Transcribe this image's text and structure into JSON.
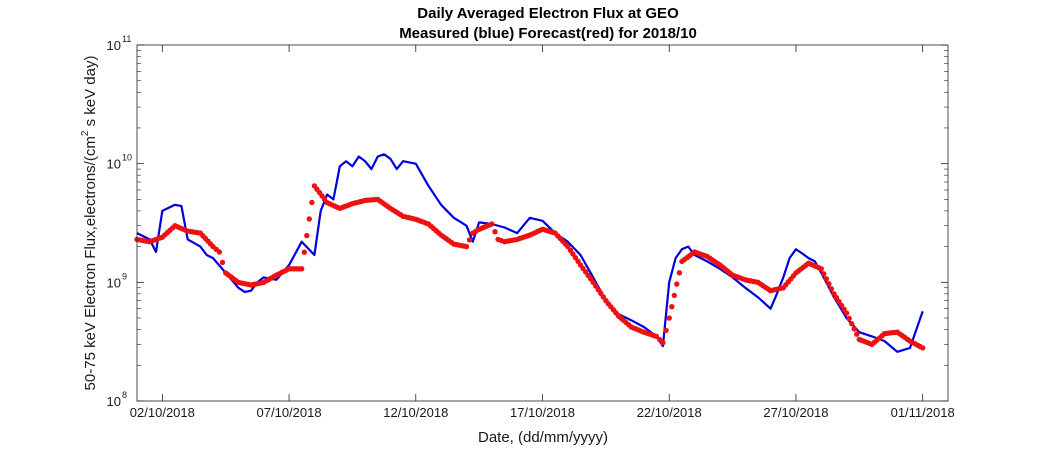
{
  "chart_data": {
    "type": "line",
    "title": "Daily Averaged Electron Flux at GEO",
    "subtitle": "Measured (blue) Forecast(red) for 2018/10",
    "xlabel": "Date, (dd/mm/yyyy)",
    "ylabel": "50-75 keV Electron Flux,electrons/(cm2 s keV day)",
    "ylabel_parts": {
      "before": "50-75 keV Electron Flux,electrons/(cm",
      "sup": "2",
      "after": " s keV day)"
    },
    "yscale": "log",
    "xlim": [
      "2018-10-01",
      "2018-11-02"
    ],
    "ylim": [
      100000000,
      100000000000
    ],
    "grid": false,
    "legend": "none",
    "x_ticks": [
      {
        "date": "2018-10-02",
        "label": "02/10/2018"
      },
      {
        "date": "2018-10-07",
        "label": "07/10/2018"
      },
      {
        "date": "2018-10-12",
        "label": "12/10/2018"
      },
      {
        "date": "2018-10-17",
        "label": "17/10/2018"
      },
      {
        "date": "2018-10-22",
        "label": "22/10/2018"
      },
      {
        "date": "2018-10-27",
        "label": "27/10/2018"
      },
      {
        "date": "2018-11-01",
        "label": "01/11/2018"
      }
    ],
    "y_ticks": [
      {
        "value": 100000000,
        "base": "10",
        "exp": "8"
      },
      {
        "value": 1000000000,
        "base": "10",
        "exp": "9"
      },
      {
        "value": 10000000000,
        "base": "10",
        "exp": "10"
      },
      {
        "value": 100000000000,
        "base": "10",
        "exp": "11"
      }
    ],
    "series": [
      {
        "style": "line",
        "color": "#0000dd",
        "x": [
          "2018-10-01",
          "2018-10-01 12:00",
          "2018-10-01 18:00",
          "2018-10-02",
          "2018-10-02 12:00",
          "2018-10-02 18:00",
          "2018-10-03",
          "2018-10-03 12:00",
          "2018-10-03 18:00",
          "2018-10-04",
          "2018-10-04 12:00",
          "2018-10-05",
          "2018-10-05 06:00",
          "2018-10-05 12:00",
          "2018-10-05 18:00",
          "2018-10-06",
          "2018-10-06 12:00",
          "2018-10-07",
          "2018-10-07 12:00",
          "2018-10-08",
          "2018-10-08 06:00",
          "2018-10-08 12:00",
          "2018-10-08 18:00",
          "2018-10-09",
          "2018-10-09 06:00",
          "2018-10-09 12:00",
          "2018-10-09 18:00",
          "2018-10-10",
          "2018-10-10 06:00",
          "2018-10-10 12:00",
          "2018-10-10 18:00",
          "2018-10-11",
          "2018-10-11 06:00",
          "2018-10-11 12:00",
          "2018-10-12",
          "2018-10-12 12:00",
          "2018-10-13",
          "2018-10-13 12:00",
          "2018-10-14",
          "2018-10-14 06:00",
          "2018-10-14 12:00",
          "2018-10-15",
          "2018-10-15 12:00",
          "2018-10-16",
          "2018-10-16 12:00",
          "2018-10-17",
          "2018-10-17 12:00",
          "2018-10-18",
          "2018-10-18 12:00",
          "2018-10-19",
          "2018-10-19 12:00",
          "2018-10-20",
          "2018-10-20 12:00",
          "2018-10-21",
          "2018-10-21 12:00",
          "2018-10-21 18:00",
          "2018-10-22",
          "2018-10-22 06:00",
          "2018-10-22 12:00",
          "2018-10-22 18:00",
          "2018-10-23",
          "2018-10-23 12:00",
          "2018-10-24",
          "2018-10-24 12:00",
          "2018-10-25",
          "2018-10-25 12:00",
          "2018-10-26",
          "2018-10-26 06:00",
          "2018-10-26 12:00",
          "2018-10-26 18:00",
          "2018-10-27",
          "2018-10-27 06:00",
          "2018-10-27 12:00",
          "2018-10-27 18:00",
          "2018-10-28",
          "2018-10-28 06:00",
          "2018-10-28 12:00",
          "2018-10-29",
          "2018-10-29 12:00",
          "2018-10-30",
          "2018-10-30 12:00",
          "2018-10-31",
          "2018-10-31 12:00",
          "2018-11-01"
        ],
        "y": [
          2600000000,
          2300000000,
          1800000000,
          4000000000,
          4500000000,
          4400000000,
          2300000000,
          2000000000,
          1700000000,
          1600000000,
          1200000000,
          900000000,
          830000000,
          850000000,
          1000000000,
          1100000000,
          1050000000,
          1400000000,
          2200000000,
          1700000000,
          4000000000,
          5500000000,
          5000000000,
          9500000000,
          10500000000,
          9500000000,
          11500000000,
          10500000000,
          9000000000,
          11500000000,
          12000000000,
          11000000000,
          9000000000,
          10500000000,
          10000000000,
          6500000000,
          4500000000,
          3500000000,
          3000000000,
          2200000000,
          3200000000,
          3100000000,
          2900000000,
          2600000000,
          3500000000,
          3300000000,
          2600000000,
          2200000000,
          1700000000,
          1100000000,
          700000000,
          540000000,
          480000000,
          420000000,
          350000000,
          290000000,
          1000000000,
          1600000000,
          1900000000,
          2000000000,
          1700000000,
          1500000000,
          1300000000,
          1100000000,
          900000000,
          750000000,
          600000000,
          800000000,
          1100000000,
          1600000000,
          1900000000,
          1750000000,
          1600000000,
          1500000000,
          1200000000,
          950000000,
          750000000,
          500000000,
          380000000,
          350000000,
          320000000,
          260000000,
          280000000,
          570000000
        ]
      },
      {
        "style": "dots",
        "color": "#ee1111",
        "x": [
          "2018-10-01",
          "2018-10-01 12:00",
          "2018-10-02",
          "2018-10-02 12:00",
          "2018-10-03",
          "2018-10-03 12:00",
          "2018-10-04",
          "2018-10-04 06:00",
          "2018-10-04 12:00",
          "2018-10-05",
          "2018-10-05 12:00",
          "2018-10-06",
          "2018-10-06 12:00",
          "2018-10-07",
          "2018-10-07 12:00",
          "2018-10-08",
          "2018-10-08 12:00",
          "2018-10-09",
          "2018-10-09 12:00",
          "2018-10-10",
          "2018-10-10 12:00",
          "2018-10-11",
          "2018-10-11 12:00",
          "2018-10-12",
          "2018-10-12 12:00",
          "2018-10-13",
          "2018-10-13 12:00",
          "2018-10-14",
          "2018-10-14 06:00",
          "2018-10-14 12:00",
          "2018-10-15",
          "2018-10-15 06:00",
          "2018-10-15 12:00",
          "2018-10-16",
          "2018-10-16 12:00",
          "2018-10-17",
          "2018-10-17 12:00",
          "2018-10-18",
          "2018-10-18 12:00",
          "2018-10-19",
          "2018-10-19 12:00",
          "2018-10-20",
          "2018-10-20 12:00",
          "2018-10-21",
          "2018-10-21 12:00",
          "2018-10-21 18:00",
          "2018-10-22",
          "2018-10-22 12:00",
          "2018-10-23",
          "2018-10-23 12:00",
          "2018-10-24",
          "2018-10-24 12:00",
          "2018-10-25",
          "2018-10-25 12:00",
          "2018-10-26",
          "2018-10-26 12:00",
          "2018-10-27",
          "2018-10-27 12:00",
          "2018-10-28",
          "2018-10-28 12:00",
          "2018-10-29",
          "2018-10-29 12:00",
          "2018-10-30",
          "2018-10-30 12:00",
          "2018-10-31",
          "2018-10-31 12:00",
          "2018-11-01"
        ],
        "y": [
          2300000000,
          2200000000,
          2400000000,
          3000000000,
          2700000000,
          2600000000,
          2000000000,
          1800000000,
          1200000000,
          1000000000,
          950000000,
          1000000000,
          1150000000,
          1300000000,
          1300000000,
          6500000000,
          4700000000,
          4200000000,
          4600000000,
          4900000000,
          5000000000,
          4200000000,
          3600000000,
          3400000000,
          3100000000,
          2500000000,
          2100000000,
          2000000000,
          2600000000,
          2800000000,
          3100000000,
          2300000000,
          2200000000,
          2300000000,
          2500000000,
          2800000000,
          2600000000,
          2000000000,
          1400000000,
          1000000000,
          700000000,
          520000000,
          420000000,
          380000000,
          350000000,
          310000000,
          500000000,
          1500000000,
          1800000000,
          1650000000,
          1400000000,
          1150000000,
          1050000000,
          1000000000,
          850000000,
          900000000,
          1200000000,
          1450000000,
          1300000000,
          800000000,
          550000000,
          330000000,
          300000000,
          370000000,
          380000000,
          320000000,
          280000000
        ]
      }
    ]
  }
}
